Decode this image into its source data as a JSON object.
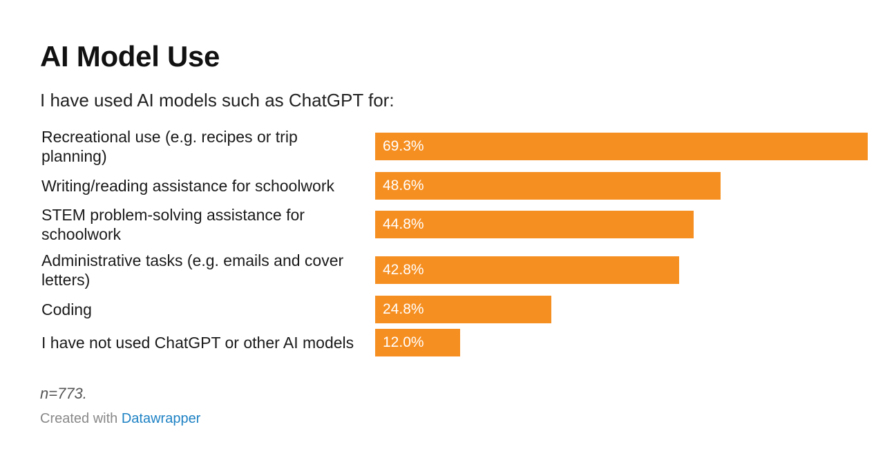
{
  "header": {
    "title": "AI Model Use",
    "subtitle": "I have used AI models such as ChatGPT for:"
  },
  "chart_data": {
    "type": "bar",
    "orientation": "horizontal",
    "title": "AI Model Use",
    "subtitle": "I have used AI models such as ChatGPT for:",
    "categories": [
      "Recreational use (e.g. recipes or trip planning)",
      "Writing/reading assistance for schoolwork",
      "STEM problem-solving assistance for schoolwork",
      "Administrative tasks (e.g. emails and cover letters)",
      "Coding",
      "I have not used ChatGPT or other AI models"
    ],
    "values": [
      69.3,
      48.6,
      44.8,
      42.8,
      24.8,
      12.0
    ],
    "value_labels": [
      "69.3%",
      "48.6%",
      "44.8%",
      "42.8%",
      "24.8%",
      "12.0%"
    ],
    "unit": "%",
    "xlim": [
      0,
      69.3
    ],
    "bar_color": "#f68f21",
    "value_label_color": "#ffffff",
    "grid": false,
    "legend": "none"
  },
  "footer": {
    "note": "n=773.",
    "credit_prefix": "Created with",
    "credit_link": "Datawrapper",
    "link_color": "#1d81c4"
  }
}
